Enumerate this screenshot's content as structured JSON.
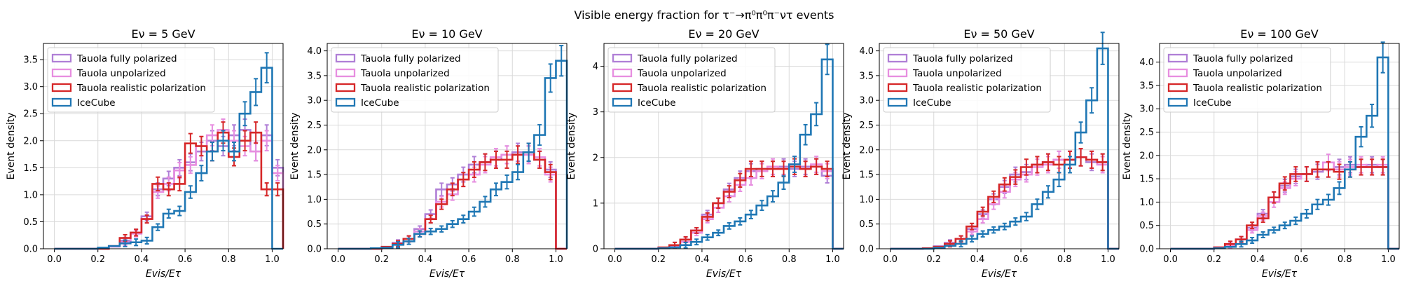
{
  "figure": {
    "suptitle": "Visible energy fraction for τ⁻→π⁰π⁰π⁻ντ events"
  },
  "legend": [
    {
      "label": "Tauola fully polarized",
      "color": "#b07fd6"
    },
    {
      "label": "Tauola unpolarized",
      "color": "#e78ee0"
    },
    {
      "label": "Tauola realistic polarization",
      "color": "#d62728"
    },
    {
      "label": "IceCube",
      "color": "#1f77b4"
    }
  ],
  "chart_data": [
    {
      "type": "histogram-step",
      "title": "Eν = 5 GeV",
      "xlabel": "Evis/Eτ",
      "ylabel": "Event density",
      "xlim": [
        -0.05,
        1.05
      ],
      "ylim": [
        0,
        3.8
      ],
      "xticks": [
        "0.0",
        "0.2",
        "0.4",
        "0.6",
        "0.8",
        "1.0"
      ],
      "yticks": [
        "0.0",
        "0.5",
        "1.0",
        "1.5",
        "2.0",
        "2.5",
        "3.0",
        "3.5"
      ],
      "grid": true,
      "legend_position": "upper-left",
      "bin_width": 0.05,
      "series": [
        {
          "name": "Tauola fully polarized",
          "y": [
            0,
            0,
            0,
            0,
            0,
            0.05,
            0.15,
            0.3,
            0.6,
            1.1,
            1.3,
            1.5,
            1.6,
            1.8,
            2.0,
            1.9,
            2.1,
            2.2,
            1.8,
            2.1,
            1.5
          ]
        },
        {
          "name": "Tauola unpolarized",
          "y": [
            0,
            0,
            0,
            0,
            0,
            0.04,
            0.12,
            0.28,
            0.55,
            1.05,
            1.2,
            1.45,
            1.55,
            1.9,
            2.1,
            2.2,
            2.0,
            1.9,
            1.8,
            2.0,
            1.4
          ]
        },
        {
          "name": "Tauola realistic polarization",
          "y": [
            0,
            0,
            0,
            0,
            0,
            0.05,
            0.2,
            0.3,
            0.55,
            1.2,
            1.1,
            1.2,
            1.95,
            1.9,
            1.8,
            2.15,
            1.7,
            2.0,
            2.15,
            1.1,
            1.1
          ]
        },
        {
          "name": "IceCube",
          "y": [
            0,
            0,
            0,
            0,
            0.02,
            0.05,
            0.1,
            0.12,
            0.15,
            0.4,
            0.65,
            0.7,
            1.05,
            1.4,
            1.8,
            2.0,
            1.8,
            2.5,
            2.9,
            3.35,
            0
          ]
        }
      ]
    },
    {
      "type": "histogram-step",
      "title": "Eν = 10 GeV",
      "xlabel": "Evis/Eτ",
      "ylabel": "Event density",
      "xlim": [
        -0.05,
        1.05
      ],
      "ylim": [
        0,
        4.15
      ],
      "xticks": [
        "0.0",
        "0.2",
        "0.4",
        "0.6",
        "0.8",
        "1.0"
      ],
      "yticks": [
        "0.0",
        "0.5",
        "1.0",
        "1.5",
        "2.0",
        "2.5",
        "3.0",
        "3.5",
        "4.0"
      ],
      "grid": true,
      "legend_position": "upper-left",
      "bin_width": 0.05,
      "series": [
        {
          "name": "Tauola fully polarized",
          "y": [
            0,
            0,
            0,
            0,
            0.03,
            0.12,
            0.2,
            0.4,
            0.7,
            1.2,
            1.3,
            1.5,
            1.7,
            1.75,
            1.8,
            1.9,
            1.95,
            1.9,
            1.8,
            1.6,
            0
          ]
        },
        {
          "name": "Tauola unpolarized",
          "y": [
            0,
            0,
            0,
            0,
            0.03,
            0.1,
            0.2,
            0.35,
            0.6,
            0.95,
            1.1,
            1.4,
            1.5,
            1.7,
            1.85,
            1.9,
            1.9,
            1.9,
            1.85,
            1.5,
            0
          ]
        },
        {
          "name": "Tauola realistic polarization",
          "y": [
            0,
            0,
            0,
            0,
            0.04,
            0.1,
            0.2,
            0.3,
            0.6,
            0.9,
            1.2,
            1.4,
            1.6,
            1.75,
            1.8,
            1.8,
            1.9,
            1.95,
            1.8,
            1.55,
            0
          ]
        },
        {
          "name": "IceCube",
          "y": [
            0,
            0,
            0,
            0.01,
            0.02,
            0.08,
            0.15,
            0.3,
            0.35,
            0.4,
            0.5,
            0.6,
            0.75,
            0.95,
            1.2,
            1.35,
            1.55,
            1.95,
            2.3,
            3.45,
            3.8
          ]
        }
      ]
    },
    {
      "type": "histogram-step",
      "title": "Eν = 20 GeV",
      "xlabel": "Evis/Eτ",
      "ylabel": "Event density",
      "xlim": [
        -0.05,
        1.05
      ],
      "ylim": [
        0,
        4.5
      ],
      "xticks": [
        "0.0",
        "0.2",
        "0.4",
        "0.6",
        "0.8",
        "1.0"
      ],
      "yticks": [
        "0",
        "1",
        "2",
        "3",
        "4"
      ],
      "grid": true,
      "legend_position": "upper-left",
      "bin_width": 0.05,
      "series": [
        {
          "name": "Tauola fully polarized",
          "y": [
            0,
            0,
            0,
            0,
            0.02,
            0.08,
            0.2,
            0.4,
            0.75,
            1.0,
            1.3,
            1.55,
            1.7,
            1.75,
            1.75,
            1.8,
            1.75,
            1.8,
            1.8,
            1.6,
            0
          ]
        },
        {
          "name": "Tauola unpolarized",
          "y": [
            0,
            0,
            0,
            0,
            0.02,
            0.06,
            0.15,
            0.35,
            0.65,
            0.9,
            1.15,
            1.4,
            1.55,
            1.7,
            1.8,
            1.75,
            1.85,
            1.75,
            1.85,
            1.7,
            0
          ]
        },
        {
          "name": "Tauola realistic polarization",
          "y": [
            0,
            0,
            0,
            0,
            0.03,
            0.08,
            0.2,
            0.4,
            0.7,
            1.0,
            1.25,
            1.5,
            1.75,
            1.75,
            1.75,
            1.75,
            1.8,
            1.75,
            1.8,
            1.75,
            0
          ]
        },
        {
          "name": "IceCube",
          "y": [
            0,
            0,
            0,
            0,
            0.01,
            0.03,
            0.08,
            0.15,
            0.25,
            0.35,
            0.5,
            0.6,
            0.75,
            0.95,
            1.15,
            1.45,
            1.85,
            2.5,
            2.95,
            4.15,
            0
          ]
        }
      ]
    },
    {
      "type": "histogram-step",
      "title": "Eν = 50 GeV",
      "xlabel": "Evis/Eτ",
      "ylabel": "Event density",
      "xlim": [
        -0.05,
        1.05
      ],
      "ylim": [
        0,
        4.15
      ],
      "xticks": [
        "0.0",
        "0.2",
        "0.4",
        "0.6",
        "0.8",
        "1.0"
      ],
      "yticks": [
        "0.0",
        "0.5",
        "1.0",
        "1.5",
        "2.0",
        "2.5",
        "3.0",
        "3.5",
        "4.0"
      ],
      "grid": true,
      "legend_position": "upper-left",
      "bin_width": 0.05,
      "series": [
        {
          "name": "Tauola fully polarized",
          "y": [
            0,
            0,
            0,
            0.01,
            0.05,
            0.12,
            0.2,
            0.4,
            0.7,
            1.0,
            1.25,
            1.5,
            1.55,
            1.7,
            1.75,
            1.8,
            1.8,
            1.85,
            1.75,
            1.75,
            0
          ]
        },
        {
          "name": "Tauola unpolarized",
          "y": [
            0,
            0,
            0,
            0.01,
            0.04,
            0.1,
            0.2,
            0.35,
            0.6,
            0.9,
            1.15,
            1.4,
            1.5,
            1.65,
            1.7,
            1.8,
            1.8,
            1.85,
            1.8,
            1.7,
            0
          ]
        },
        {
          "name": "Tauola realistic polarization",
          "y": [
            0,
            0,
            0,
            0.01,
            0.04,
            0.1,
            0.2,
            0.45,
            0.75,
            1.05,
            1.3,
            1.45,
            1.65,
            1.7,
            1.75,
            1.7,
            1.8,
            1.85,
            1.8,
            1.75,
            0
          ]
        },
        {
          "name": "IceCube",
          "y": [
            0,
            0,
            0,
            0,
            0.02,
            0.06,
            0.1,
            0.2,
            0.3,
            0.38,
            0.45,
            0.55,
            0.65,
            0.9,
            1.15,
            1.4,
            1.7,
            2.35,
            3.0,
            4.05,
            0
          ]
        }
      ]
    },
    {
      "type": "histogram-step",
      "title": "Eν = 100 GeV",
      "xlabel": "Evis/Eτ",
      "ylabel": "Event density",
      "xlim": [
        -0.05,
        1.05
      ],
      "ylim": [
        0,
        4.4
      ],
      "xticks": [
        "0.0",
        "0.2",
        "0.4",
        "0.6",
        "0.8",
        "1.0"
      ],
      "yticks": [
        "0.0",
        "0.5",
        "1.0",
        "1.5",
        "2.0",
        "2.5",
        "3.0",
        "3.5",
        "4.0"
      ],
      "grid": true,
      "legend_position": "upper-left",
      "bin_width": 0.05,
      "series": [
        {
          "name": "Tauola fully polarized",
          "y": [
            0,
            0,
            0,
            0,
            0.03,
            0.1,
            0.2,
            0.45,
            0.75,
            1.1,
            1.35,
            1.55,
            1.6,
            1.65,
            1.7,
            1.75,
            1.8,
            1.75,
            1.8,
            1.75,
            0
          ]
        },
        {
          "name": "Tauola unpolarized",
          "y": [
            0,
            0,
            0,
            0,
            0.03,
            0.08,
            0.2,
            0.4,
            0.7,
            1.0,
            1.3,
            1.5,
            1.6,
            1.7,
            1.85,
            1.7,
            1.75,
            1.8,
            1.75,
            1.8,
            0
          ]
        },
        {
          "name": "Tauola realistic polarization",
          "y": [
            0,
            0,
            0,
            0,
            0.03,
            0.1,
            0.2,
            0.5,
            0.65,
            1.1,
            1.4,
            1.6,
            1.6,
            1.7,
            1.7,
            1.65,
            1.7,
            1.75,
            1.75,
            1.75,
            0
          ]
        },
        {
          "name": "IceCube",
          "y": [
            0,
            0,
            0,
            0,
            0.01,
            0.04,
            0.1,
            0.18,
            0.3,
            0.4,
            0.5,
            0.6,
            0.75,
            0.95,
            1.05,
            1.3,
            1.7,
            2.4,
            2.85,
            4.1,
            0
          ]
        }
      ]
    }
  ]
}
